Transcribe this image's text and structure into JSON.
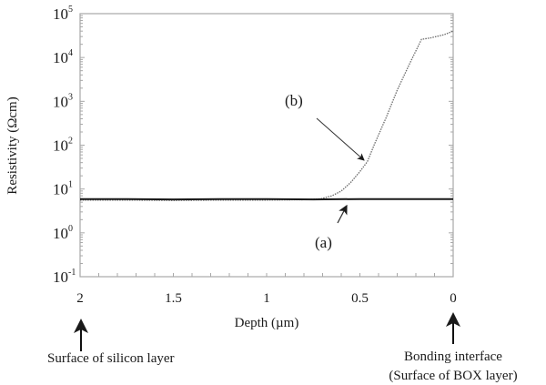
{
  "chart_data": {
    "type": "line",
    "title": "",
    "xlabel": "Depth (µm)",
    "ylabel": "Resistivity (Ωcm)",
    "xlim": [
      2,
      0
    ],
    "x_reversed": true,
    "yscale": "log",
    "ylim": [
      0.1,
      100000
    ],
    "x_ticks": [
      2,
      1.5,
      1,
      0.5,
      0
    ],
    "x_tick_labels": [
      "2",
      "1.5",
      "1",
      "0.5",
      "0"
    ],
    "y_ticks_exp": [
      -1,
      0,
      1,
      2,
      3,
      4,
      5
    ],
    "y_tick_labels": [
      "10-1",
      "100",
      "101",
      "102",
      "103",
      "104",
      "105"
    ],
    "grid": false,
    "legend": "none",
    "series": [
      {
        "name": "(a)",
        "style": "solid",
        "color": "#1a1a1a",
        "x": [
          2.0,
          1.75,
          1.5,
          1.25,
          1.0,
          0.75,
          0.5,
          0.25,
          0.0
        ],
        "values": [
          5.9,
          5.9,
          5.8,
          5.9,
          5.9,
          5.8,
          5.9,
          5.9,
          5.9
        ]
      },
      {
        "name": "(b)",
        "style": "dotted",
        "color": "#555555",
        "x": [
          2.0,
          1.75,
          1.5,
          1.25,
          1.0,
          0.8,
          0.71,
          0.65,
          0.6,
          0.55,
          0.5,
          0.46,
          0.42,
          0.36,
          0.3,
          0.23,
          0.17,
          0.12,
          0.05,
          0.0
        ],
        "values": [
          5.6,
          5.6,
          5.5,
          5.6,
          5.6,
          5.7,
          6.0,
          7.0,
          9.0,
          14,
          25,
          42,
          110,
          420,
          1800,
          7800,
          26000,
          28000,
          33000,
          40000
        ]
      }
    ],
    "annotations": [
      {
        "text": "(a)",
        "points_to": "series a",
        "at": [
          0.6,
          5.9
        ]
      },
      {
        "text": "(b)",
        "points_to": "series b",
        "at": [
          0.46,
          42
        ]
      },
      {
        "text": "Surface of silicon layer",
        "at_x": 2,
        "position": "below x-axis, arrow up"
      },
      {
        "text": "Bonding interface\n(Surface of BOX layer)",
        "at_x": 0,
        "position": "below x-axis, arrow up"
      }
    ]
  },
  "labels": {
    "xlabel": "Depth (µm)",
    "ylabel": "Resistivity (Ωcm)",
    "annot_a": "(a)",
    "annot_b": "(b)",
    "left_note": "Surface of silicon layer",
    "right_note_1": "Bonding interface",
    "right_note_2": "(Surface of BOX layer)"
  }
}
